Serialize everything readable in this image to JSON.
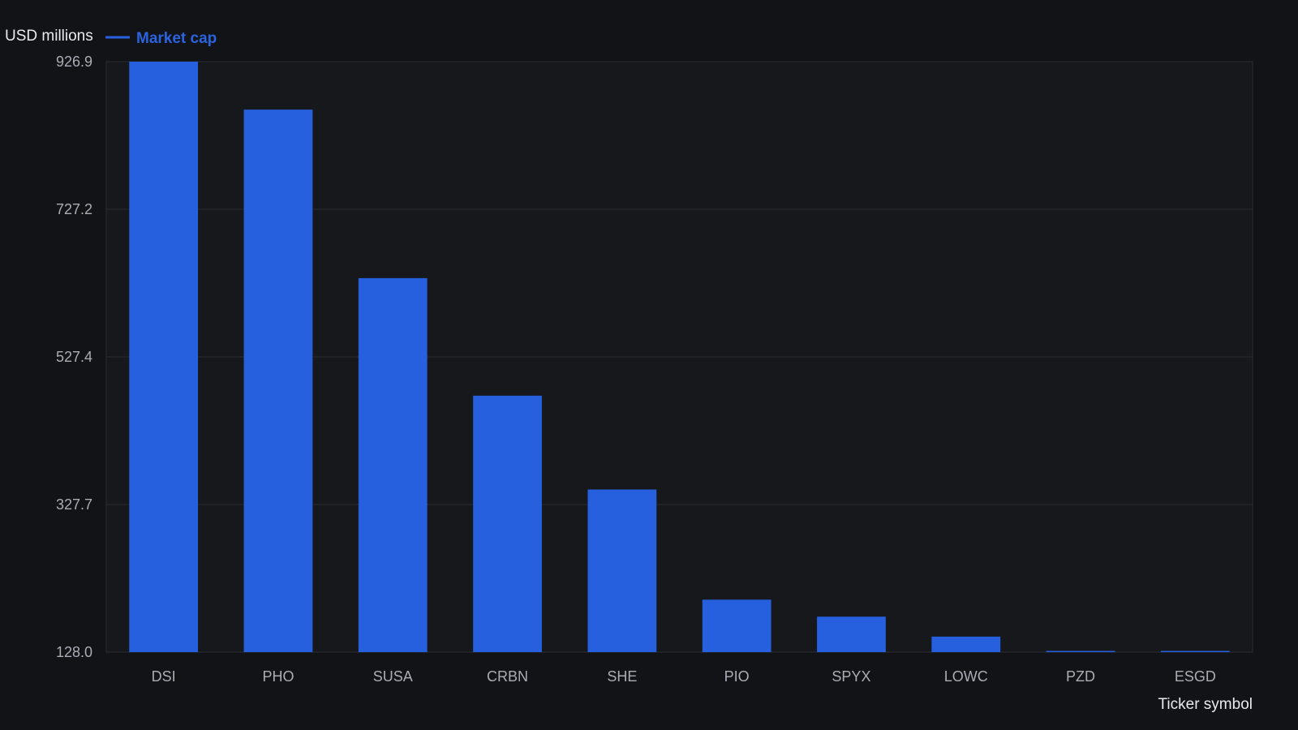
{
  "colors": {
    "background": "#111317",
    "plot_background": "#16181c",
    "grid": "#2a2d33",
    "bar": "#2660de",
    "legend_text": "#2b63df"
  },
  "chart_data": {
    "type": "bar",
    "ylabel": "USD millions",
    "xlabel": "Ticker symbol",
    "legend": {
      "placement": "top-left"
    },
    "grid": true,
    "categories": [
      "DSI",
      "PHO",
      "SUSA",
      "CRBN",
      "SHE",
      "PIO",
      "SPYX",
      "LOWC",
      "PZD",
      "ESGD"
    ],
    "series": [
      {
        "name": "Market cap",
        "values": [
          926.9,
          862.0,
          634.0,
          475.0,
          348.0,
          199.0,
          176.0,
          149.0,
          129.0,
          127.0
        ]
      }
    ],
    "ylim": [
      128.0,
      926.9
    ],
    "yticks": [
      "128.0",
      "327.7",
      "527.4",
      "727.2",
      "926.9"
    ]
  }
}
